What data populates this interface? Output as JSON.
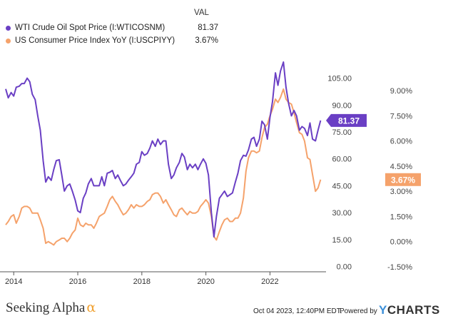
{
  "legend": {
    "header": "VAL",
    "items": [
      {
        "label": "WTI Crude Oil Spot Price (I:WTICOSNM)",
        "value": "81.37",
        "color": "#6a3fc4"
      },
      {
        "label": "US Consumer Price Index YoY (I:USCPIYY)",
        "value": "3.67%",
        "color": "#f5a26b"
      }
    ]
  },
  "footer": {
    "brand": "Seeking Alpha",
    "brand_symbol": "α",
    "timestamp": "Oct 04 2023, 12:40PM EDT.",
    "powered_by": "Powered by",
    "ycharts_y": "Y",
    "ycharts_rest": "CHARTS"
  },
  "chart_data": {
    "type": "line",
    "x_ticks": [
      "2014",
      "2016",
      "2018",
      "2020",
      "2022"
    ],
    "x_range": [
      2013.75,
      2023.75
    ],
    "y_left": {
      "ticks": [
        "0.00",
        "15.00",
        "30.00",
        "45.00",
        "60.00",
        "75.00",
        "90.00",
        "105.00"
      ],
      "range": [
        -3,
        112
      ]
    },
    "y_right": {
      "ticks": [
        "-1.50%",
        "0.00%",
        "1.50%",
        "3.00%",
        "4.50%",
        "6.00%",
        "7.50%",
        "9.00%"
      ],
      "range": [
        -1.8,
        10.5
      ]
    },
    "grid": false,
    "legend_position": "top-left",
    "series": [
      {
        "name": "WTI Crude Oil Spot Price (I:WTICOSNM)",
        "axis": "left",
        "color": "#6a3fc4",
        "last_label": "81.37",
        "points": [
          [
            2013.75,
            99
          ],
          [
            2013.83,
            94
          ],
          [
            2013.92,
            97
          ],
          [
            2014.0,
            95
          ],
          [
            2014.08,
            100
          ],
          [
            2014.17,
            100.5
          ],
          [
            2014.25,
            102
          ],
          [
            2014.33,
            102
          ],
          [
            2014.42,
            105
          ],
          [
            2014.5,
            103
          ],
          [
            2014.58,
            96
          ],
          [
            2014.67,
            93
          ],
          [
            2014.75,
            84
          ],
          [
            2014.83,
            76
          ],
          [
            2014.92,
            59
          ],
          [
            2015.0,
            47
          ],
          [
            2015.08,
            50
          ],
          [
            2015.17,
            48
          ],
          [
            2015.25,
            54
          ],
          [
            2015.33,
            59
          ],
          [
            2015.42,
            59.5
          ],
          [
            2015.5,
            51
          ],
          [
            2015.58,
            42
          ],
          [
            2015.67,
            45
          ],
          [
            2015.75,
            46
          ],
          [
            2015.83,
            42
          ],
          [
            2015.92,
            37
          ],
          [
            2016.0,
            31
          ],
          [
            2016.08,
            30
          ],
          [
            2016.17,
            38
          ],
          [
            2016.25,
            41
          ],
          [
            2016.33,
            46
          ],
          [
            2016.42,
            49
          ],
          [
            2016.5,
            45
          ],
          [
            2016.58,
            45
          ],
          [
            2016.67,
            45
          ],
          [
            2016.75,
            50
          ],
          [
            2016.83,
            45
          ],
          [
            2016.92,
            52
          ],
          [
            2017.0,
            52.5
          ],
          [
            2017.08,
            53.5
          ],
          [
            2017.17,
            49
          ],
          [
            2017.25,
            51
          ],
          [
            2017.33,
            48
          ],
          [
            2017.42,
            45
          ],
          [
            2017.5,
            46
          ],
          [
            2017.58,
            48
          ],
          [
            2017.67,
            50
          ],
          [
            2017.75,
            52
          ],
          [
            2017.83,
            57
          ],
          [
            2017.92,
            58
          ],
          [
            2018.0,
            64
          ],
          [
            2018.08,
            62
          ],
          [
            2018.17,
            63
          ],
          [
            2018.25,
            66
          ],
          [
            2018.33,
            70
          ],
          [
            2018.42,
            67
          ],
          [
            2018.5,
            71
          ],
          [
            2018.58,
            68
          ],
          [
            2018.67,
            70
          ],
          [
            2018.75,
            70
          ],
          [
            2018.83,
            57
          ],
          [
            2018.92,
            49
          ],
          [
            2019.0,
            51
          ],
          [
            2019.08,
            55
          ],
          [
            2019.17,
            58
          ],
          [
            2019.25,
            63
          ],
          [
            2019.33,
            61
          ],
          [
            2019.42,
            54
          ],
          [
            2019.5,
            57
          ],
          [
            2019.58,
            55
          ],
          [
            2019.67,
            57
          ],
          [
            2019.75,
            54
          ],
          [
            2019.83,
            57
          ],
          [
            2019.92,
            60
          ],
          [
            2020.0,
            57.5
          ],
          [
            2020.08,
            51
          ],
          [
            2020.17,
            30
          ],
          [
            2020.25,
            16.5
          ],
          [
            2020.33,
            28
          ],
          [
            2020.42,
            38
          ],
          [
            2020.5,
            40
          ],
          [
            2020.58,
            42
          ],
          [
            2020.67,
            39
          ],
          [
            2020.75,
            40
          ],
          [
            2020.83,
            41
          ],
          [
            2020.92,
            47
          ],
          [
            2021.0,
            52
          ],
          [
            2021.08,
            59
          ],
          [
            2021.17,
            62
          ],
          [
            2021.25,
            61.5
          ],
          [
            2021.33,
            65
          ],
          [
            2021.42,
            71
          ],
          [
            2021.5,
            72
          ],
          [
            2021.58,
            67
          ],
          [
            2021.67,
            71
          ],
          [
            2021.75,
            81
          ],
          [
            2021.83,
            79
          ],
          [
            2021.92,
            71
          ],
          [
            2022.0,
            83
          ],
          [
            2022.08,
            92
          ],
          [
            2022.17,
            108
          ],
          [
            2022.25,
            101
          ],
          [
            2022.33,
            109
          ],
          [
            2022.42,
            114
          ],
          [
            2022.5,
            100
          ],
          [
            2022.58,
            91
          ],
          [
            2022.67,
            84
          ],
          [
            2022.75,
            87
          ],
          [
            2022.83,
            84
          ],
          [
            2022.92,
            76
          ],
          [
            2023.0,
            78
          ],
          [
            2023.08,
            77
          ],
          [
            2023.17,
            73
          ],
          [
            2023.25,
            80
          ],
          [
            2023.33,
            71
          ],
          [
            2023.42,
            70
          ],
          [
            2023.5,
            76
          ],
          [
            2023.58,
            81.4
          ]
        ]
      },
      {
        "name": "US Consumer Price Index YoY (I:USCPIYY)",
        "axis": "right",
        "color": "#f5a26b",
        "last_label": "3.67%",
        "points": [
          [
            2013.75,
            1.0
          ],
          [
            2013.83,
            1.2
          ],
          [
            2013.92,
            1.5
          ],
          [
            2014.0,
            1.6
          ],
          [
            2014.08,
            1.1
          ],
          [
            2014.17,
            1.5
          ],
          [
            2014.25,
            2.0
          ],
          [
            2014.33,
            2.1
          ],
          [
            2014.42,
            2.1
          ],
          [
            2014.5,
            2.0
          ],
          [
            2014.58,
            1.7
          ],
          [
            2014.67,
            1.7
          ],
          [
            2014.75,
            1.7
          ],
          [
            2014.83,
            1.3
          ],
          [
            2014.92,
            0.8
          ],
          [
            2015.0,
            -0.1
          ],
          [
            2015.08,
            0.0
          ],
          [
            2015.17,
            -0.1
          ],
          [
            2015.25,
            -0.2
          ],
          [
            2015.33,
            0.0
          ],
          [
            2015.42,
            0.1
          ],
          [
            2015.5,
            0.2
          ],
          [
            2015.58,
            0.2
          ],
          [
            2015.67,
            0.0
          ],
          [
            2015.75,
            0.2
          ],
          [
            2015.83,
            0.5
          ],
          [
            2015.92,
            0.7
          ],
          [
            2016.0,
            1.4
          ],
          [
            2016.08,
            1.0
          ],
          [
            2016.17,
            0.9
          ],
          [
            2016.25,
            1.1
          ],
          [
            2016.33,
            1.0
          ],
          [
            2016.42,
            1.0
          ],
          [
            2016.5,
            0.8
          ],
          [
            2016.58,
            1.1
          ],
          [
            2016.67,
            1.5
          ],
          [
            2016.75,
            1.6
          ],
          [
            2016.83,
            1.7
          ],
          [
            2016.92,
            2.1
          ],
          [
            2017.0,
            2.5
          ],
          [
            2017.08,
            2.7
          ],
          [
            2017.17,
            2.4
          ],
          [
            2017.25,
            2.2
          ],
          [
            2017.33,
            1.9
          ],
          [
            2017.42,
            1.6
          ],
          [
            2017.5,
            1.7
          ],
          [
            2017.58,
            1.9
          ],
          [
            2017.67,
            2.2
          ],
          [
            2017.75,
            2.0
          ],
          [
            2017.83,
            2.2
          ],
          [
            2017.92,
            2.1
          ],
          [
            2018.0,
            2.1
          ],
          [
            2018.08,
            2.2
          ],
          [
            2018.17,
            2.4
          ],
          [
            2018.25,
            2.5
          ],
          [
            2018.33,
            2.8
          ],
          [
            2018.42,
            2.9
          ],
          [
            2018.5,
            2.9
          ],
          [
            2018.58,
            2.7
          ],
          [
            2018.67,
            2.3
          ],
          [
            2018.75,
            2.5
          ],
          [
            2018.83,
            2.2
          ],
          [
            2018.92,
            1.9
          ],
          [
            2019.0,
            1.6
          ],
          [
            2019.08,
            1.5
          ],
          [
            2019.17,
            1.9
          ],
          [
            2019.25,
            2.0
          ],
          [
            2019.33,
            1.8
          ],
          [
            2019.42,
            1.6
          ],
          [
            2019.5,
            1.8
          ],
          [
            2019.58,
            1.7
          ],
          [
            2019.67,
            1.7
          ],
          [
            2019.75,
            1.8
          ],
          [
            2019.83,
            2.1
          ],
          [
            2019.92,
            2.3
          ],
          [
            2020.0,
            2.5
          ],
          [
            2020.08,
            2.3
          ],
          [
            2020.17,
            1.5
          ],
          [
            2020.25,
            0.3
          ],
          [
            2020.33,
            0.1
          ],
          [
            2020.42,
            0.6
          ],
          [
            2020.5,
            1.0
          ],
          [
            2020.58,
            1.3
          ],
          [
            2020.67,
            1.4
          ],
          [
            2020.75,
            1.2
          ],
          [
            2020.83,
            1.2
          ],
          [
            2020.92,
            1.4
          ],
          [
            2021.0,
            1.4
          ],
          [
            2021.08,
            1.7
          ],
          [
            2021.17,
            2.6
          ],
          [
            2021.25,
            4.2
          ],
          [
            2021.33,
            5.0
          ],
          [
            2021.42,
            5.4
          ],
          [
            2021.5,
            5.4
          ],
          [
            2021.58,
            5.3
          ],
          [
            2021.67,
            5.4
          ],
          [
            2021.75,
            6.2
          ],
          [
            2021.83,
            6.8
          ],
          [
            2021.92,
            7.0
          ],
          [
            2022.0,
            7.5
          ],
          [
            2022.08,
            7.9
          ],
          [
            2022.17,
            8.5
          ],
          [
            2022.25,
            8.3
          ],
          [
            2022.33,
            8.6
          ],
          [
            2022.42,
            9.1
          ],
          [
            2022.5,
            8.5
          ],
          [
            2022.58,
            8.3
          ],
          [
            2022.67,
            8.2
          ],
          [
            2022.75,
            7.7
          ],
          [
            2022.83,
            7.1
          ],
          [
            2022.92,
            6.5
          ],
          [
            2023.0,
            6.4
          ],
          [
            2023.08,
            6.0
          ],
          [
            2023.17,
            5.0
          ],
          [
            2023.25,
            4.9
          ],
          [
            2023.33,
            4.0
          ],
          [
            2023.42,
            3.0
          ],
          [
            2023.5,
            3.2
          ],
          [
            2023.58,
            3.7
          ]
        ]
      }
    ]
  }
}
